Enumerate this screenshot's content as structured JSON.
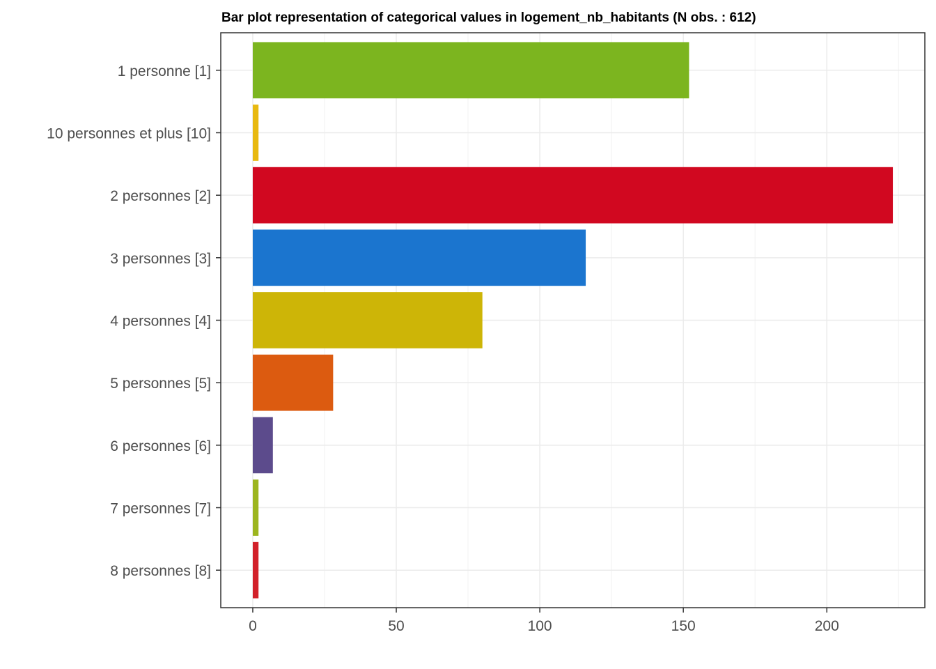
{
  "chart_data": {
    "type": "bar",
    "orientation": "horizontal",
    "title": "Bar plot representation of categorical values in logement_nb_habitants (N obs. : 612)",
    "xlabel": "",
    "ylabel": "",
    "categories": [
      "1 personne [1]",
      "10 personnes et plus [10]",
      "2 personnes [2]",
      "3 personnes [3]",
      "4 personnes [4]",
      "5 personnes [5]",
      "6 personnes [6]",
      "7 personnes [7]",
      "8 personnes [8]"
    ],
    "values": [
      152,
      2,
      223,
      116,
      80,
      28,
      7,
      2,
      2
    ],
    "colors": [
      "#7cb51f",
      "#e8b910",
      "#d10820",
      "#1b75cf",
      "#cdb507",
      "#dc5b10",
      "#5c4b8c",
      "#9cb51f",
      "#d2212a"
    ],
    "xticks": [
      0,
      50,
      100,
      150,
      200
    ],
    "xtick_labels": [
      "0",
      "50",
      "100",
      "150",
      "200"
    ],
    "xlim": [
      -11.15,
      234.15
    ],
    "grid": true,
    "legend": "none"
  }
}
